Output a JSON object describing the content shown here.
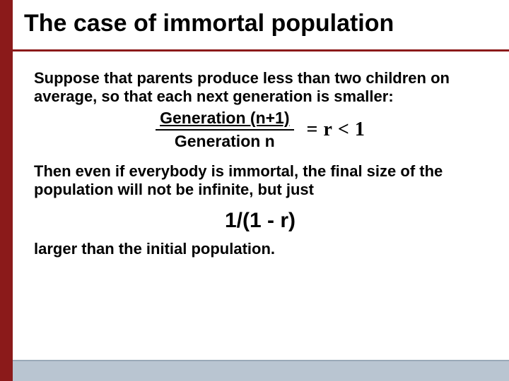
{
  "colors": {
    "accent": "#8b1a1a",
    "bottom_bar": "#b9c5d1",
    "bottom_bar_top": "#9aa9b8",
    "text": "#000000",
    "title_underline": "#8b1a1a"
  },
  "layout": {
    "left_bar_width": 18,
    "bottom_bar_height": 28
  },
  "title": {
    "text": "The case of immortal population",
    "fontsize": 34,
    "color": "#000000"
  },
  "paragraphs": {
    "p1": "Suppose that parents produce less than two children on average, so that each next generation is smaller:",
    "p2": "Then even if everybody is immortal, the final size of the population will not be infinite, but just",
    "p3": "larger than the initial population.",
    "fontsize": 22
  },
  "equation": {
    "numerator": "Generation (n+1)",
    "denominator": "Generation n",
    "equals": "=",
    "r": "r",
    "lt": "<",
    "one": "1",
    "frac_fontsize": 23,
    "rhs_fontsize": 28
  },
  "result": {
    "text": "1/(1 - r)",
    "fontsize": 30
  }
}
